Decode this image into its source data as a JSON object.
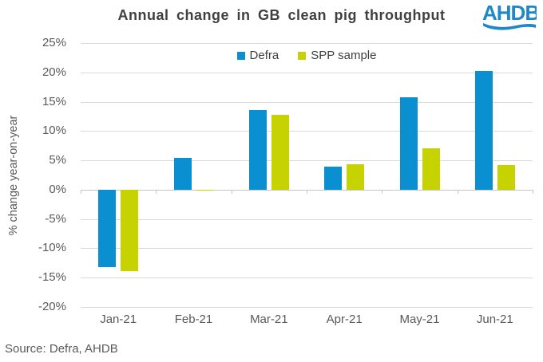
{
  "header": {
    "title": "Annual change in GB clean pig throughput",
    "logo_text": "AHDB"
  },
  "chart_data": {
    "type": "bar",
    "title": "Annual change in GB clean pig throughput",
    "xlabel": "",
    "ylabel": "% change year-on-year",
    "categories": [
      "Jan-21",
      "Feb-21",
      "Mar-21",
      "Apr-21",
      "May-21",
      "Jun-21"
    ],
    "series": [
      {
        "name": "Defra",
        "color": "#0A8FD0",
        "values": [
          -13.2,
          5.4,
          13.6,
          3.9,
          15.7,
          20.3
        ]
      },
      {
        "name": "SPP sample",
        "color": "#C7D301",
        "values": [
          -13.9,
          -0.2,
          12.8,
          4.4,
          7.1,
          4.2
        ]
      }
    ],
    "ylim": [
      -20,
      25
    ],
    "ytick_step": 5,
    "ytick_labels": [
      "25%",
      "20%",
      "15%",
      "10%",
      "5%",
      "0%",
      "-5%",
      "-10%",
      "-15%",
      "-20%"
    ],
    "grid": true,
    "legend_position": "top-center"
  },
  "footer": {
    "source": "Source: Defra, AHDB"
  },
  "colors": {
    "title_text": "#404040",
    "axis_text": "#595959",
    "gridline": "#D9D9D9",
    "axis_line": "#C6C6C6",
    "defra_blue": "#0A8FD0",
    "spp_green": "#C7D301",
    "logo_blue": "#1E88C9",
    "background": "#FFFFFF"
  }
}
